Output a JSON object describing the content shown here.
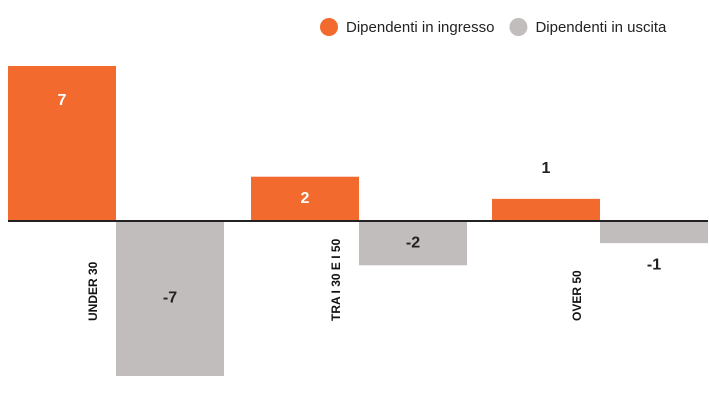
{
  "chart_data": {
    "type": "bar",
    "categories": [
      "UNDER 30",
      "TRA I 30 E I 50",
      "OVER 50"
    ],
    "series": [
      {
        "name": "Dipendenti in ingresso",
        "color": "#f26a2e",
        "values": [
          7,
          2,
          1
        ]
      },
      {
        "name": "Dipendenti in uscita",
        "color": "#c2bdbd",
        "values": [
          -7,
          -2,
          -1
        ]
      }
    ],
    "ylim": [
      -7,
      7
    ]
  }
}
